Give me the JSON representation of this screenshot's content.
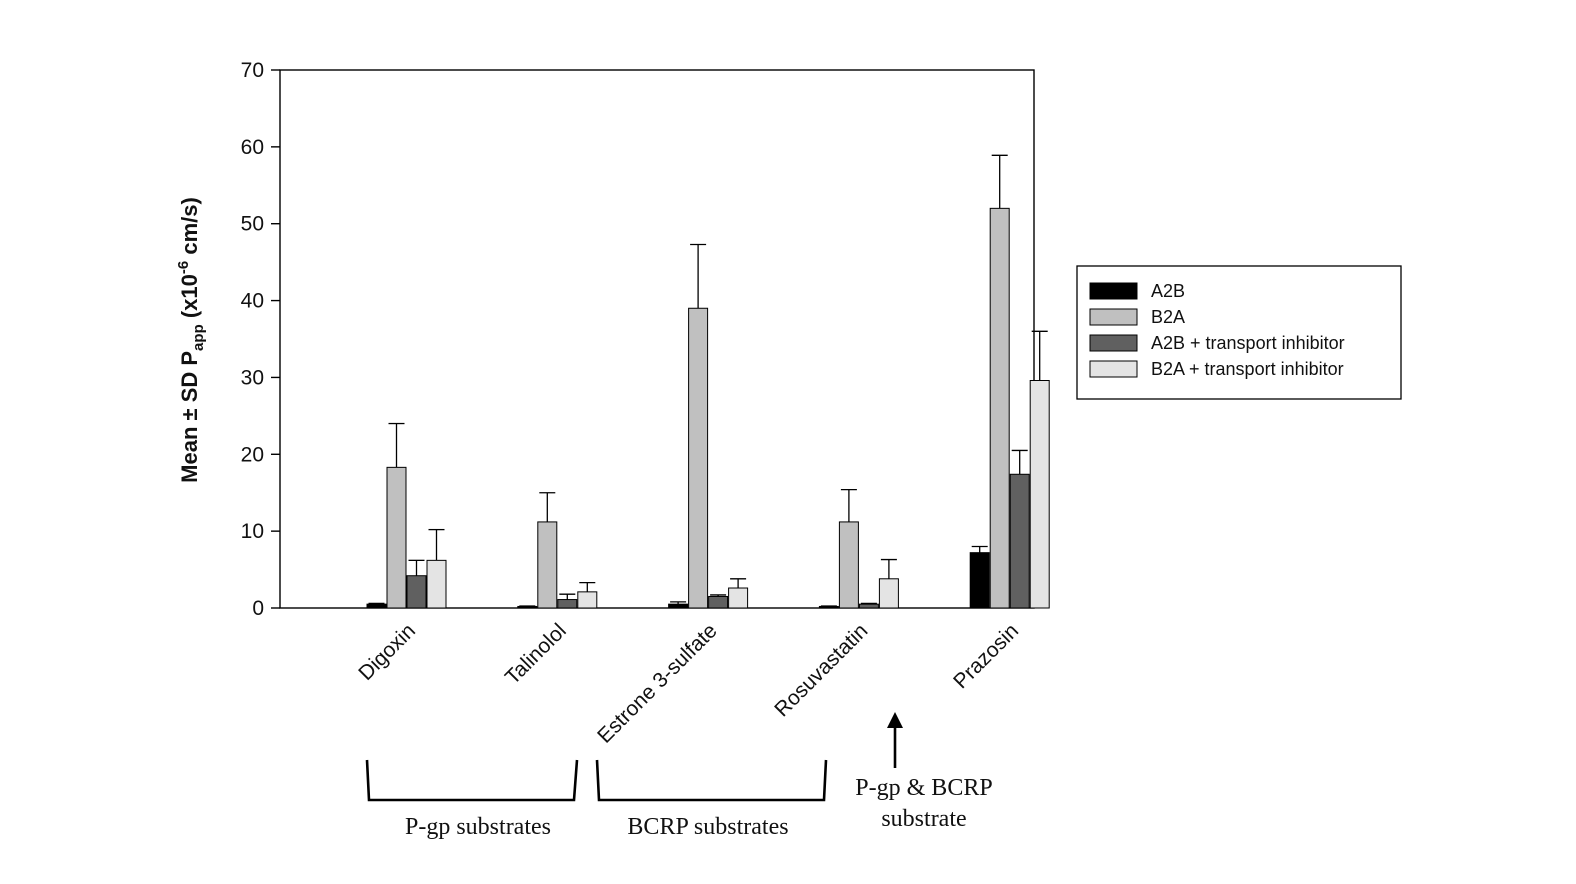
{
  "chart_data": {
    "type": "bar",
    "title": "",
    "xlabel": "",
    "ylabel": {
      "prefix": "Mean ± SD P",
      "subscript": "app",
      "unit_open": " (x10",
      "superscript": "-6",
      "unit_close": " cm/s)"
    },
    "ylim": [
      0,
      70
    ],
    "yticks": [
      0,
      10,
      20,
      30,
      40,
      50,
      60,
      70
    ],
    "categories": [
      "Digoxin",
      "Talinolol",
      "Estrone 3-sulfate",
      "Rosuvastatin",
      "Prazosin"
    ],
    "series": [
      {
        "name": "A2B",
        "color": "#000000",
        "values": [
          0.5,
          0.2,
          0.5,
          0.2,
          7.2
        ],
        "errors": [
          0.1,
          0.05,
          0.3,
          0.05,
          0.8
        ]
      },
      {
        "name": "B2A",
        "color": "#c0c0c0",
        "values": [
          18.3,
          11.2,
          39.0,
          11.2,
          52.0
        ],
        "errors": [
          5.7,
          3.8,
          8.3,
          4.2,
          6.9
        ]
      },
      {
        "name": "A2B + transport inhibitor",
        "color": "#606060",
        "values": [
          4.2,
          1.1,
          1.5,
          0.5,
          17.4
        ],
        "errors": [
          2.0,
          0.7,
          0.2,
          0.1,
          3.1
        ]
      },
      {
        "name": "B2A + transport inhibitor",
        "color": "#e4e4e4",
        "values": [
          6.2,
          2.1,
          2.6,
          3.8,
          29.6
        ],
        "errors": [
          4.0,
          1.2,
          1.2,
          2.5,
          6.4
        ]
      }
    ],
    "legend_position": "right",
    "grid": false,
    "annotations": {
      "pgp_group": "P-gp substrates",
      "bcrp_group": "BCRP substrates",
      "both_line1": "P-gp & BCRP",
      "both_line2": "substrate"
    }
  }
}
